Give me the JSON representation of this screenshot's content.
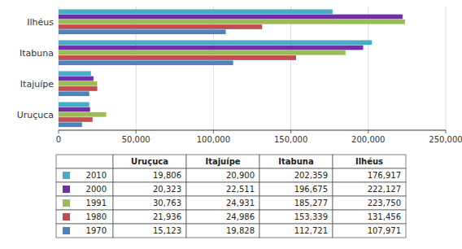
{
  "chart_data": {
    "type": "bar",
    "orientation": "horizontal",
    "grid": true,
    "categories": [
      "Uruçuca",
      "Itajuípe",
      "Itabuna",
      "Ilhéus"
    ],
    "series": [
      {
        "name": "2010",
        "color": "#4BACC6",
        "values": [
          19806,
          20900,
          202359,
          176917
        ],
        "value_labels": [
          "19,806",
          "20,900",
          "202,359",
          "176,917"
        ]
      },
      {
        "name": "2000",
        "color": "#7030A0",
        "values": [
          20323,
          22511,
          196675,
          222127
        ],
        "value_labels": [
          "20,323",
          "22,511",
          "196,675",
          "222,127"
        ]
      },
      {
        "name": "1991",
        "color": "#9BBB59",
        "values": [
          30763,
          24931,
          185277,
          223750
        ],
        "value_labels": [
          "30,763",
          "24,931",
          "185,277",
          "223,750"
        ]
      },
      {
        "name": "1980",
        "color": "#C0504D",
        "values": [
          21936,
          24986,
          153339,
          131456
        ],
        "value_labels": [
          "21,936",
          "24,986",
          "153,339",
          "131,456"
        ]
      },
      {
        "name": "1970",
        "color": "#4F81BD",
        "values": [
          15123,
          19828,
          112721,
          107971
        ],
        "value_labels": [
          "15,123",
          "19,828",
          "112,721",
          "107,971"
        ]
      }
    ],
    "xlim": [
      0,
      250000
    ],
    "xticks": [
      0,
      {
        "value": 50000,
        "label": "50,000"
      },
      {
        "value": 100000,
        "label": "100,000"
      },
      {
        "value": 150000,
        "label": "150,000"
      },
      {
        "value": 200000,
        "label": "200,000"
      },
      {
        "value": 250000,
        "label": "250,000"
      }
    ]
  }
}
